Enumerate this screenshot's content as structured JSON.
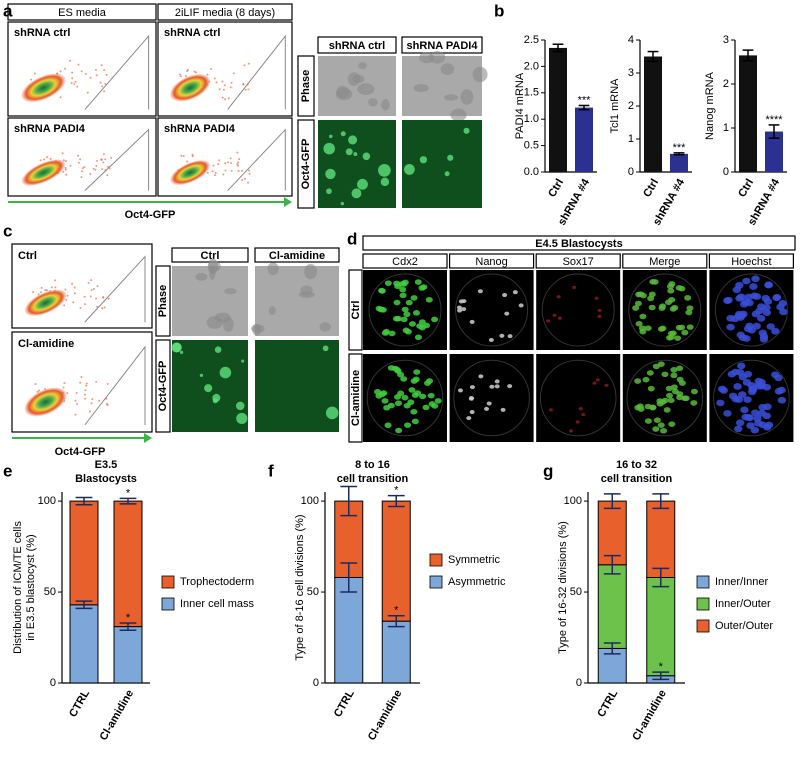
{
  "panel_labels": [
    "a",
    "b",
    "c",
    "d",
    "e",
    "f",
    "g"
  ],
  "panel_a": {
    "columns": [
      "ES media",
      "2iLIF media (8 days)"
    ],
    "cells": [
      [
        "shRNA ctrl",
        "shRNA ctrl"
      ],
      [
        "shRNA PADI4",
        "shRNA PADI4"
      ]
    ],
    "axis": "Oct4-GFP",
    "micro_columns": [
      "shRNA ctrl",
      "shRNA PADI4"
    ],
    "micro_rows": [
      "Phase",
      "Oct4-GFP"
    ]
  },
  "panel_c": {
    "flow_labels": [
      "Ctrl",
      "Cl-amidine"
    ],
    "axis": "Oct4-GFP",
    "micro_columns": [
      "Ctrl",
      "Cl-amidine"
    ],
    "micro_rows": [
      "Phase",
      "Oct4-GFP"
    ]
  },
  "panel_d": {
    "title": "E4.5 Blastocysts",
    "columns": [
      "Cdx2",
      "Nanog",
      "Sox17",
      "Merge",
      "Hoechst"
    ],
    "rows": [
      "Ctrl",
      "Cl-amidine"
    ]
  },
  "chart_data": [
    {
      "type": "bar",
      "ylabel": "PADI4 mRNA",
      "categories": [
        "Ctrl",
        "shRNA #4"
      ],
      "values": [
        2.35,
        1.22
      ],
      "errors": [
        0.07,
        0.04
      ],
      "colors": [
        "#111111",
        "#2b3190"
      ],
      "error_color": "#000000",
      "ylim": [
        0,
        2.5
      ],
      "yticks": [
        {
          "value": 0,
          "label": "0.0"
        },
        0.5,
        {
          "value": 1,
          "label": "1.0"
        },
        1.5,
        {
          "value": 2,
          "label": "2.0"
        },
        2.5
      ],
      "annotations": [
        {
          "text": "***",
          "category": 1
        }
      ]
    },
    {
      "type": "bar",
      "ylabel": "Tcl1 mRNA",
      "categories": [
        "Ctrl",
        "shRNA #4"
      ],
      "values": [
        3.5,
        0.55
      ],
      "errors": [
        0.15,
        0.03
      ],
      "colors": [
        "#111111",
        "#2b3190"
      ],
      "error_color": "#000000",
      "ylim": [
        0,
        4
      ],
      "yticks": [
        0,
        1,
        2,
        3,
        4
      ],
      "annotations": [
        {
          "text": "***",
          "category": 1
        }
      ]
    },
    {
      "type": "bar",
      "ylabel": "Nanog mRNA",
      "categories": [
        "Ctrl",
        "shRNA #4"
      ],
      "values": [
        2.65,
        0.92
      ],
      "errors": [
        0.12,
        0.15
      ],
      "colors": [
        "#111111",
        "#2b3190"
      ],
      "error_color": "#000000",
      "ylim": [
        0,
        3
      ],
      "yticks": [
        0,
        1,
        2,
        3
      ],
      "annotations": [
        {
          "text": "****",
          "category": 1
        }
      ]
    },
    {
      "type": "stacked_bar",
      "title": [
        "E3.5",
        "Blastocysts"
      ],
      "ylabel": [
        "Distribution of ICM/TE cells",
        "in E3.5 blastocyst (%)"
      ],
      "categories": [
        "CTRL",
        "Cl-amidine"
      ],
      "series": [
        {
          "name": "Inner cell mass",
          "color": "#7da7d9",
          "values": [
            43,
            31
          ],
          "errors": [
            2,
            2
          ]
        },
        {
          "name": "Trophectoderm",
          "color": "#e8602c",
          "values": [
            57,
            69
          ],
          "errors": [
            2,
            1.5
          ]
        }
      ],
      "legend_reversed": true,
      "error_color": "#1f2a5c",
      "ylim": [
        0,
        105
      ],
      "yticks": [
        0,
        50,
        100
      ],
      "annotations": [
        {
          "text": "*",
          "category": 1,
          "series": 0
        },
        {
          "text": "*",
          "category": 1,
          "series": 1
        }
      ]
    },
    {
      "type": "stacked_bar",
      "title": [
        "8 to 16",
        "cell transition"
      ],
      "ylabel": "Type of 8-16 cell divisions (%)",
      "categories": [
        "CTRL",
        "Cl-amidine"
      ],
      "series": [
        {
          "name": "Asymmetric",
          "color": "#7da7d9",
          "values": [
            58,
            34
          ],
          "errors": [
            8,
            3
          ]
        },
        {
          "name": "Symmetric",
          "color": "#e8602c",
          "values": [
            42,
            66
          ],
          "errors": [
            8,
            3
          ]
        }
      ],
      "legend_reversed": true,
      "error_color": "#1f2a5c",
      "ylim": [
        0,
        105
      ],
      "yticks": [
        0,
        50,
        100
      ],
      "annotations": [
        {
          "text": "*",
          "category": 1,
          "series": 0
        },
        {
          "text": "*",
          "category": 1,
          "series": 1
        }
      ]
    },
    {
      "type": "stacked_bar",
      "title": [
        "16 to 32",
        "cell transition"
      ],
      "ylabel": "Type of 16-32 divisions (%)",
      "categories": [
        "CTRL",
        "Cl-amidine"
      ],
      "series": [
        {
          "name": "Inner/Inner",
          "color": "#7da7d9",
          "values": [
            19,
            4
          ],
          "errors": [
            3,
            2
          ]
        },
        {
          "name": "Inner/Outer",
          "color": "#6cc24a",
          "values": [
            46,
            54
          ],
          "errors": [
            5,
            5
          ]
        },
        {
          "name": "Outer/Outer",
          "color": "#e8602c",
          "values": [
            35,
            42
          ],
          "errors": [
            4,
            4
          ]
        }
      ],
      "legend_reversed": false,
      "error_color": "#1f2a5c",
      "ylim": [
        0,
        105
      ],
      "yticks": [
        0,
        50,
        100
      ],
      "annotations": [
        {
          "text": "*",
          "category": 1,
          "series": 0
        }
      ]
    }
  ]
}
